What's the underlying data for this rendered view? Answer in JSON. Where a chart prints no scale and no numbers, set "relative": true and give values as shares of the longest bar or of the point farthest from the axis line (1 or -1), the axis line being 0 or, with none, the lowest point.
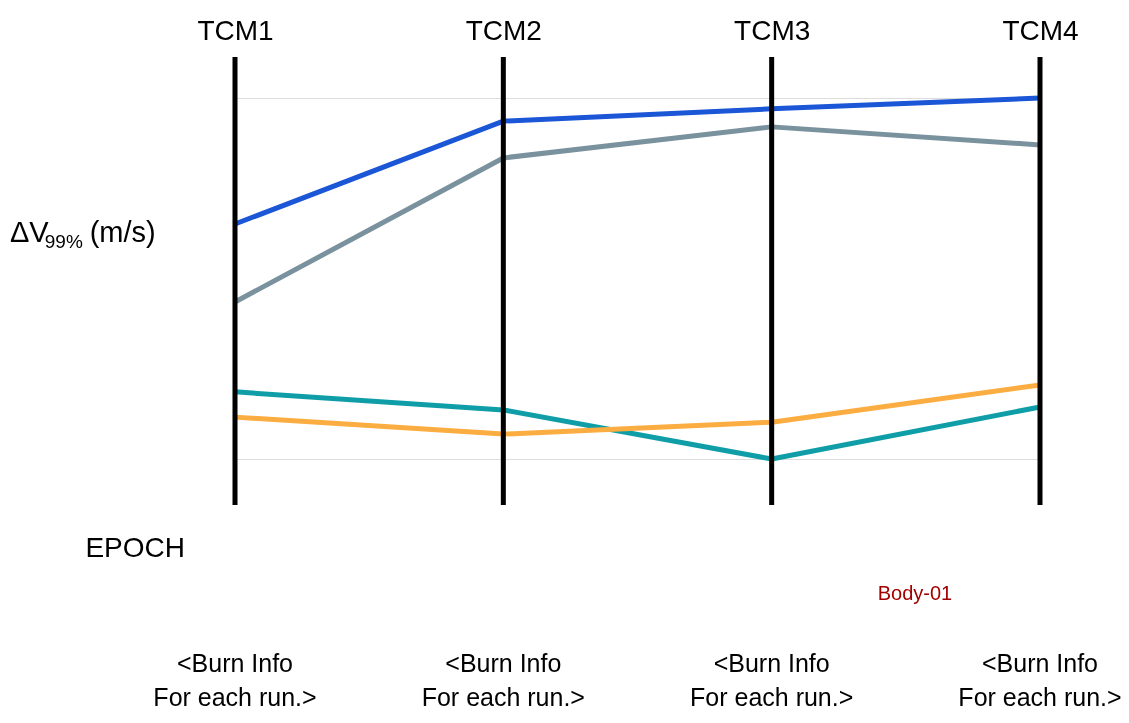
{
  "chart_data": {
    "type": "line",
    "relative": true,
    "categories": [
      "TCM1",
      "TCM2",
      "TCM3",
      "TCM4"
    ],
    "ylabel": "ΔV$_{99%}$ (m/s)",
    "grid": "x",
    "marker": "none",
    "line_style": "solid",
    "series": [
      {
        "color": "#1a56d6",
        "values": [
          0.651,
          0.936,
          0.97,
          1
        ]
      },
      {
        "color": "#7a929e",
        "values": [
          0.435,
          0.834,
          0.92,
          0.87
        ]
      },
      {
        "color": "#0f9ea8",
        "values": [
          0.186,
          0.136,
          0,
          0.144
        ]
      },
      {
        "color": "#fbad41",
        "values": [
          0.116,
          0.069,
          0.102,
          0.205
        ]
      }
    ],
    "annotations": [
      "EPOCH",
      "Body-01",
      "<Burn Info\nFor each run.>",
      "<Burn Info\nFor each run.>",
      "<Burn Info\nFor each run.>",
      "<Burn Info\nFor each run.>"
    ]
  }
}
